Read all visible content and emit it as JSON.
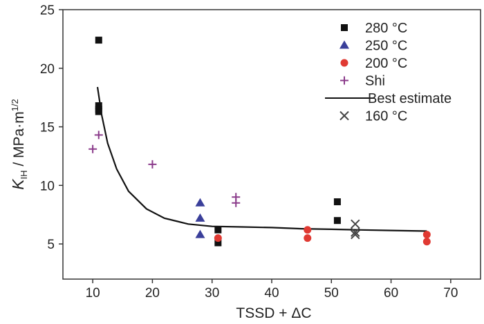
{
  "chart_data": {
    "type": "scatter",
    "xlabel": "TSSD + ΔC",
    "ylabel": {
      "main": "K",
      "sub": "IH",
      "unit": " / MPa·m",
      "sup": "1/2"
    },
    "xlim": [
      5,
      75
    ],
    "ylim": [
      2,
      25
    ],
    "xticks": [
      10,
      20,
      30,
      40,
      50,
      60,
      70
    ],
    "yticks": [
      5,
      10,
      15,
      20,
      25
    ],
    "legend_position": "top-right",
    "series": [
      {
        "name": "280 °C",
        "marker": "square",
        "color": "#111111",
        "points": [
          [
            11,
            22.4
          ],
          [
            11,
            16.8
          ],
          [
            11,
            16.5
          ],
          [
            11,
            16.3
          ],
          [
            31,
            6.2
          ],
          [
            31,
            5.1
          ],
          [
            51,
            8.6
          ],
          [
            51,
            7.0
          ]
        ]
      },
      {
        "name": "250 °C",
        "marker": "triangle",
        "color": "#3a3f9a",
        "points": [
          [
            28,
            8.5
          ],
          [
            28,
            7.2
          ],
          [
            28,
            5.8
          ]
        ]
      },
      {
        "name": "200 °C",
        "marker": "circle",
        "color": "#e03a33",
        "points": [
          [
            31,
            5.5
          ],
          [
            46,
            6.2
          ],
          [
            46,
            5.5
          ],
          [
            66,
            5.8
          ],
          [
            66,
            5.2
          ]
        ]
      },
      {
        "name": "Shi",
        "marker": "plus",
        "color": "#8a3a8a",
        "points": [
          [
            10,
            13.1
          ],
          [
            11,
            14.3
          ],
          [
            20,
            11.8
          ],
          [
            34,
            9.0
          ],
          [
            34,
            8.5
          ]
        ]
      },
      {
        "name": "Best estimate",
        "marker": "line",
        "color": "#111111",
        "points": [
          [
            10.8,
            18.4
          ],
          [
            11.5,
            16.0
          ],
          [
            12.5,
            13.6
          ],
          [
            14,
            11.4
          ],
          [
            16,
            9.5
          ],
          [
            19,
            8.0
          ],
          [
            22,
            7.2
          ],
          [
            26,
            6.7
          ],
          [
            30,
            6.5
          ],
          [
            35,
            6.45
          ],
          [
            40,
            6.4
          ],
          [
            45,
            6.3
          ],
          [
            50,
            6.25
          ],
          [
            55,
            6.2
          ],
          [
            60,
            6.15
          ],
          [
            66,
            6.1
          ]
        ]
      },
      {
        "name": "160 °C",
        "marker": "x",
        "color": "#444444",
        "points": [
          [
            54,
            6.7
          ],
          [
            54,
            6.0
          ],
          [
            54,
            5.8
          ]
        ]
      }
    ]
  }
}
